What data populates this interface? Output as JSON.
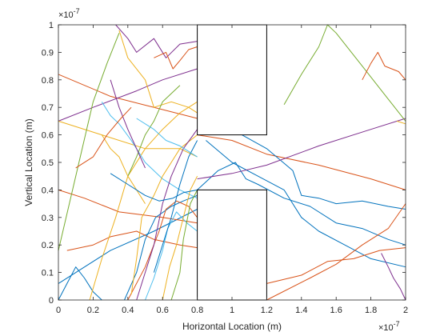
{
  "chart_data": {
    "type": "line",
    "title": "",
    "xlabel": "Horizontal Location (m)",
    "ylabel": "Vertical Location (m)",
    "x_exponent_label": "×10",
    "x_exponent_power": "-7",
    "y_exponent_label": "×10",
    "y_exponent_power": "-7",
    "xlim": [
      0,
      2
    ],
    "ylim": [
      0,
      1
    ],
    "scale_factor": 1e-07,
    "xticks": [
      0,
      0.2,
      0.4,
      0.6,
      0.8,
      1,
      1.2,
      1.4,
      1.6,
      1.8,
      2
    ],
    "xtick_labels": [
      "0",
      "0.2",
      "0.4",
      "0.6",
      "0.8",
      "1",
      "1.2",
      "1.4",
      "1.6",
      "1.8",
      "2"
    ],
    "yticks": [
      0,
      0.1,
      0.2,
      0.3,
      0.4,
      0.5,
      0.6,
      0.7,
      0.8,
      0.9,
      1
    ],
    "ytick_labels": [
      "0",
      "0.1",
      "0.2",
      "0.3",
      "0.4",
      "0.5",
      "0.6",
      "0.7",
      "0.8",
      "0.9",
      "1"
    ],
    "grid": false,
    "legend": "none",
    "colors": [
      "#0072BD",
      "#D95319",
      "#EDB120",
      "#7E2F8E",
      "#77AC30",
      "#4DBEEE",
      "#A2142F"
    ],
    "walls": [
      {
        "x": [
          0.8,
          1.2
        ],
        "y": [
          0.6,
          1.0
        ]
      },
      {
        "x": [
          0.8,
          1.2
        ],
        "y": [
          0.0,
          0.4
        ]
      }
    ],
    "series": [
      {
        "color": "#D95319",
        "x": [
          0.0,
          0.3,
          0.8
        ],
        "y": [
          0.82,
          0.74,
          0.66
        ]
      },
      {
        "color": "#0072BD",
        "x": [
          0.0,
          0.3,
          0.55,
          0.8
        ],
        "y": [
          0.06,
          0.18,
          0.25,
          0.33
        ]
      },
      {
        "color": "#D95319",
        "x": [
          0.0,
          0.15,
          0.35,
          0.6,
          0.8
        ],
        "y": [
          0.4,
          0.37,
          0.32,
          0.3,
          0.28
        ]
      },
      {
        "color": "#7E2F8E",
        "x": [
          0.0,
          0.2,
          0.45,
          0.6,
          0.8
        ],
        "y": [
          0.65,
          0.7,
          0.76,
          0.8,
          0.84
        ]
      },
      {
        "color": "#EDB120",
        "x": [
          0.0,
          0.25,
          0.5,
          0.7,
          0.8
        ],
        "y": [
          0.65,
          0.6,
          0.55,
          0.55,
          0.52
        ]
      },
      {
        "color": "#77AC30",
        "x": [
          0.0,
          0.1,
          0.2,
          0.28,
          0.35
        ],
        "y": [
          0.18,
          0.45,
          0.72,
          0.86,
          0.97
        ]
      },
      {
        "color": "#0072BD",
        "x": [
          0.0,
          0.05,
          0.1,
          0.15,
          0.2,
          0.25
        ],
        "y": [
          0.0,
          0.06,
          0.12,
          0.08,
          0.03,
          0.0
        ]
      },
      {
        "color": "#D95319",
        "x": [
          0.05,
          0.2,
          0.3,
          0.45,
          0.55,
          0.7,
          0.8
        ],
        "y": [
          0.18,
          0.2,
          0.23,
          0.25,
          0.22,
          0.2,
          0.19
        ]
      },
      {
        "color": "#EDB120",
        "x": [
          0.18,
          0.25,
          0.33,
          0.4,
          0.5,
          0.6,
          0.7,
          0.8
        ],
        "y": [
          0.0,
          0.15,
          0.3,
          0.45,
          0.55,
          0.62,
          0.68,
          0.72
        ]
      },
      {
        "color": "#4DBEEE",
        "x": [
          0.25,
          0.3,
          0.35,
          0.42,
          0.5,
          0.6,
          0.7,
          0.8
        ],
        "y": [
          0.72,
          0.67,
          0.64,
          0.58,
          0.5,
          0.44,
          0.4,
          0.37
        ]
      },
      {
        "color": "#7E2F8E",
        "x": [
          0.33,
          0.4,
          0.45,
          0.55,
          0.62,
          0.7,
          0.8
        ],
        "y": [
          1.0,
          0.95,
          0.9,
          0.95,
          0.88,
          0.93,
          0.94
        ]
      },
      {
        "color": "#EDB120",
        "x": [
          0.35,
          0.4,
          0.5,
          0.55,
          0.65,
          0.75,
          0.8
        ],
        "y": [
          0.98,
          0.88,
          0.8,
          0.7,
          0.72,
          0.7,
          0.68
        ]
      },
      {
        "color": "#0072BD",
        "x": [
          0.38,
          0.45,
          0.5,
          0.56,
          0.65,
          0.72,
          0.8
        ],
        "y": [
          0.0,
          0.1,
          0.22,
          0.3,
          0.34,
          0.36,
          0.38
        ]
      },
      {
        "color": "#D95319",
        "x": [
          0.4,
          0.5,
          0.58,
          0.62,
          0.68,
          0.75,
          0.8
        ],
        "y": [
          0.0,
          0.12,
          0.25,
          0.33,
          0.36,
          0.34,
          0.3
        ]
      },
      {
        "color": "#77AC30",
        "x": [
          0.4,
          0.45,
          0.5,
          0.55,
          0.6,
          0.7
        ],
        "y": [
          0.45,
          0.52,
          0.6,
          0.65,
          0.72,
          0.78
        ]
      },
      {
        "color": "#EDB120",
        "x": [
          0.42,
          0.45,
          0.48,
          0.55,
          0.6,
          0.65,
          0.7,
          0.8
        ],
        "y": [
          0.02,
          0.15,
          0.3,
          0.38,
          0.45,
          0.5,
          0.55,
          0.6
        ]
      },
      {
        "color": "#7E2F8E",
        "x": [
          0.45,
          0.5,
          0.55,
          0.6,
          0.65,
          0.72,
          0.8
        ],
        "y": [
          0.0,
          0.1,
          0.2,
          0.35,
          0.45,
          0.55,
          0.62
        ]
      },
      {
        "color": "#4DBEEE",
        "x": [
          0.5,
          0.55,
          0.6,
          0.63,
          0.68,
          0.74,
          0.8
        ],
        "y": [
          0.0,
          0.08,
          0.18,
          0.26,
          0.32,
          0.28,
          0.25
        ]
      },
      {
        "color": "#0072BD",
        "x": [
          0.55,
          0.6,
          0.65,
          0.7,
          0.75,
          0.8
        ],
        "y": [
          0.1,
          0.2,
          0.3,
          0.42,
          0.52,
          0.58
        ]
      },
      {
        "color": "#D95319",
        "x": [
          0.55,
          0.62,
          0.66,
          0.7,
          0.75,
          0.8
        ],
        "y": [
          0.88,
          0.9,
          0.84,
          0.87,
          0.91,
          0.92
        ]
      },
      {
        "color": "#EDB120",
        "x": [
          0.6,
          0.64,
          0.68,
          0.72,
          0.76,
          0.8
        ],
        "y": [
          0.0,
          0.12,
          0.2,
          0.3,
          0.4,
          0.45
        ]
      },
      {
        "color": "#77AC30",
        "x": [
          0.65,
          0.7,
          0.72,
          0.76,
          0.8
        ],
        "y": [
          0.0,
          0.1,
          0.22,
          0.35,
          0.4
        ]
      },
      {
        "color": "#4DBEEE",
        "x": [
          0.45,
          0.55,
          0.62,
          0.7,
          0.8
        ],
        "y": [
          0.66,
          0.62,
          0.58,
          0.56,
          0.52
        ]
      },
      {
        "color": "#EDB120",
        "x": [
          0.25,
          0.3,
          0.35,
          0.4,
          0.45,
          0.5
        ],
        "y": [
          0.6,
          0.55,
          0.52,
          0.45,
          0.4,
          0.35
        ]
      },
      {
        "color": "#7E2F8E",
        "x": [
          0.3,
          0.35,
          0.4,
          0.45,
          0.5
        ],
        "y": [
          0.8,
          0.7,
          0.62,
          0.55,
          0.48
        ]
      },
      {
        "color": "#D95319",
        "x": [
          0.1,
          0.2,
          0.28,
          0.36,
          0.42
        ],
        "y": [
          0.48,
          0.52,
          0.6,
          0.66,
          0.7
        ]
      },
      {
        "color": "#0072BD",
        "x": [
          0.3,
          0.4,
          0.5,
          0.58,
          0.66,
          0.72,
          0.8
        ],
        "y": [
          0.46,
          0.42,
          0.38,
          0.36,
          0.37,
          0.39,
          0.4
        ]
      },
      {
        "color": "#D95319",
        "x": [
          0.8,
          1.0,
          1.2,
          1.5,
          1.8,
          2.0
        ],
        "y": [
          0.6,
          0.58,
          0.53,
          0.49,
          0.44,
          0.4
        ]
      },
      {
        "color": "#0072BD",
        "x": [
          0.8,
          0.92,
          1.02,
          1.08,
          1.15,
          1.3,
          1.45,
          1.6,
          1.75,
          1.9,
          2.0
        ],
        "y": [
          0.4,
          0.47,
          0.5,
          0.44,
          0.42,
          0.37,
          0.34,
          0.28,
          0.26,
          0.22,
          0.2
        ]
      },
      {
        "color": "#0072BD",
        "x": [
          1.0,
          1.2,
          1.35,
          1.4,
          1.5,
          1.6,
          1.75,
          1.9,
          2.0
        ],
        "y": [
          0.62,
          0.55,
          0.47,
          0.38,
          0.37,
          0.35,
          0.36,
          0.34,
          0.33
        ]
      },
      {
        "color": "#0072BD",
        "x": [
          0.85,
          1.0,
          1.15,
          1.3,
          1.4,
          1.5,
          1.65,
          1.8,
          2.0
        ],
        "y": [
          0.58,
          0.5,
          0.45,
          0.4,
          0.3,
          0.25,
          0.2,
          0.15,
          0.12
        ]
      },
      {
        "color": "#7E2F8E",
        "x": [
          0.8,
          1.0,
          1.2,
          1.5,
          1.8,
          2.0
        ],
        "y": [
          0.44,
          0.46,
          0.49,
          0.56,
          0.62,
          0.66
        ]
      },
      {
        "color": "#D95319",
        "x": [
          1.2,
          1.45,
          1.6,
          1.75,
          1.9,
          2.0
        ],
        "y": [
          0.0,
          0.08,
          0.13,
          0.2,
          0.26,
          0.35
        ]
      },
      {
        "color": "#D95319",
        "x": [
          1.2,
          1.4,
          1.55,
          1.7,
          1.85,
          2.0
        ],
        "y": [
          0.06,
          0.09,
          0.14,
          0.15,
          0.18,
          0.19
        ]
      },
      {
        "color": "#77AC30",
        "x": [
          1.3,
          1.4,
          1.5,
          1.55,
          1.6,
          1.75,
          1.9,
          2.0
        ],
        "y": [
          0.71,
          0.82,
          0.92,
          1.0,
          0.97,
          0.85,
          0.73,
          0.65
        ]
      },
      {
        "color": "#D95319",
        "x": [
          1.75,
          1.8,
          1.84,
          1.88,
          1.96,
          2.0
        ],
        "y": [
          0.8,
          0.86,
          0.9,
          0.85,
          0.83,
          0.8
        ]
      },
      {
        "color": "#7E2F8E",
        "x": [
          1.86,
          1.9,
          1.93,
          1.97,
          2.0
        ],
        "y": [
          0.17,
          0.12,
          0.08,
          0.04,
          0.0
        ]
      },
      {
        "color": "#EDB120",
        "x": [
          1.95,
          2.0
        ],
        "y": [
          0.65,
          0.64
        ]
      }
    ]
  }
}
